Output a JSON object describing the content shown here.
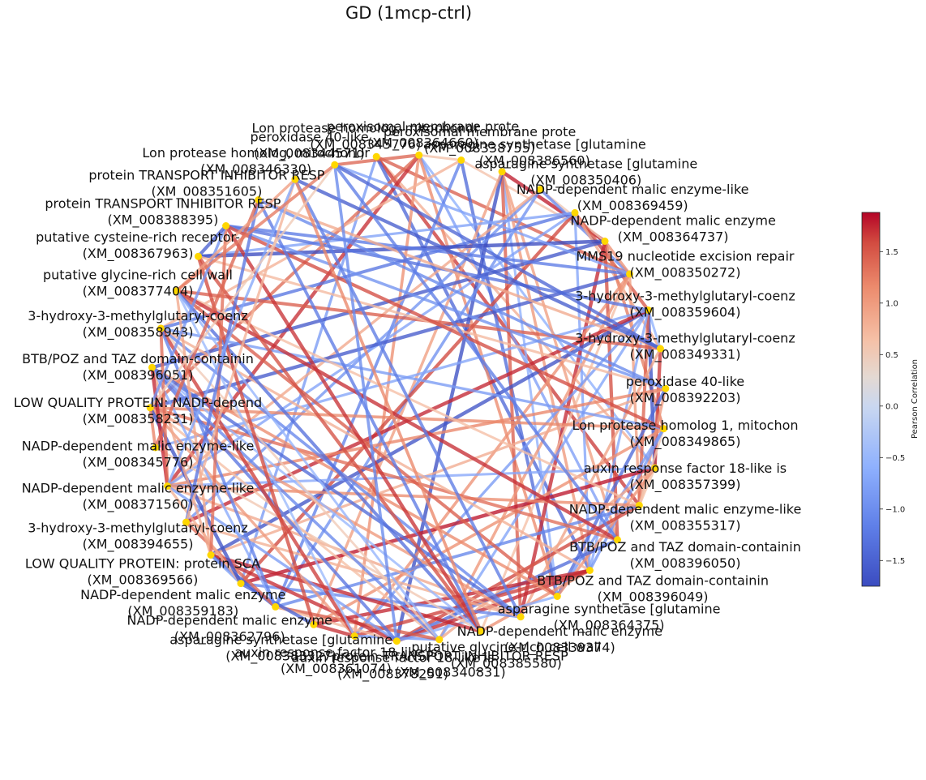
{
  "title": "GD (1mcp-ctrl)",
  "colorbar": {
    "label": "Pearson Correlation",
    "min": -1.75,
    "max": 1.88,
    "ticks": [
      -1.5,
      -1.0,
      -0.5,
      0.0,
      0.5,
      1.0,
      1.5
    ],
    "tick_labels": [
      "−1.5",
      "−1.0",
      "−0.5",
      "0.0",
      "0.5",
      "1.0",
      "1.5"
    ],
    "colormap": "coolwarm",
    "colors": [
      "#3b4cc0",
      "#7396f5",
      "#b0cbfc",
      "#dddcdc",
      "#f7b89c",
      "#ee8468",
      "#b40426"
    ]
  },
  "node_color": "#ffd700",
  "nodes": [
    {
      "id": "XM_008345776",
      "line1": "Lon protease homolog, mitochondr",
      "line2": "(XM_008345776)"
    },
    {
      "id": "XM_008364660",
      "line1": "peroxisomal membrane prote",
      "line2": "(XM_008364660)"
    },
    {
      "id": "XM_008338755",
      "line1": "peroxisomal membrane prote",
      "line2": "(XM_008338755)"
    },
    {
      "id": "XM_008386560",
      "line1": "asparagine synthetase [glutamine",
      "line2": "(XM_008386560)"
    },
    {
      "id": "XM_008350406",
      "line1": "asparagine synthetase [glutamine",
      "line2": "(XM_008350406)"
    },
    {
      "id": "XM_008369459",
      "line1": "NADP-dependent malic enzyme-like",
      "line2": "(XM_008369459)"
    },
    {
      "id": "XM_008364737",
      "line1": "NADP-dependent malic enzyme",
      "line2": "(XM_008364737)"
    },
    {
      "id": "XM_008350272",
      "line1": "MMS19 nucleotide excision repair",
      "line2": "(XM_008350272)"
    },
    {
      "id": "XM_008359604",
      "line1": "3-hydroxy-3-methylglutaryl-coenz",
      "line2": "(XM_008359604)"
    },
    {
      "id": "XM_008349331",
      "line1": "3-hydroxy-3-methylglutaryl-coenz",
      "line2": "(XM_008349331)"
    },
    {
      "id": "XM_008392203",
      "line1": "peroxidase 40-like",
      "line2": "(XM_008392203)"
    },
    {
      "id": "XM_008349865",
      "line1": "Lon protease homolog 1, mitochon",
      "line2": "(XM_008349865)"
    },
    {
      "id": "XM_008357399",
      "line1": "auxin response factor 18-like is",
      "line2": "(XM_008357399)"
    },
    {
      "id": "XM_008355317",
      "line1": "NADP-dependent malic enzyme-like",
      "line2": "(XM_008355317)"
    },
    {
      "id": "XM_008396050",
      "line1": "BTB/POZ and TAZ domain-containin",
      "line2": "(XM_008396050)"
    },
    {
      "id": "XM_008396049",
      "line1": "BTB/POZ and TAZ domain-containin",
      "line2": "(XM_008396049)"
    },
    {
      "id": "XM_008364375",
      "line1": "asparagine synthetase [glutamine",
      "line2": "(XM_008364375)"
    },
    {
      "id": "XM_008339374",
      "line1": "NADP-dependent malic enzyme",
      "line2": "(XM_008339374)"
    },
    {
      "id": "XM_008385580",
      "line1": "putative glycine-rich cell wall",
      "line2": "(XM_008385580)"
    },
    {
      "id": "XM_008340831",
      "line1": "protein TRANSPORT INHIBITOR RESP",
      "line2": "(XM_008340831)"
    },
    {
      "id": "XM_008378251",
      "line1": "auxin response factor 18-like is",
      "line2": "(XM_008378251)"
    },
    {
      "id": "XM_008361074",
      "line1": "auxin response factor 18-like is",
      "line2": "(XM_008361074)"
    },
    {
      "id": "XM_008383327",
      "line1": "asparagine synthetase [glutamine",
      "line2": "(XM_008383327)"
    },
    {
      "id": "XM_008362796",
      "line1": "NADP-dependent malic enzyme",
      "line2": "(XM_008362796)"
    },
    {
      "id": "XM_008359183",
      "line1": "NADP-dependent malic enzyme",
      "line2": "(XM_008359183)"
    },
    {
      "id": "XM_008369566",
      "line1": "LOW QUALITY PROTEIN: protein SCA",
      "line2": "(XM_008369566)"
    },
    {
      "id": "XM_008394655",
      "line1": "3-hydroxy-3-methylglutaryl-coenz",
      "line2": "(XM_008394655)"
    },
    {
      "id": "XM_008371560",
      "line1": "NADP-dependent malic enzyme-like",
      "line2": "(XM_008371560)"
    },
    {
      "id": "XM_008345776b",
      "line1": "NADP-dependent malic enzyme-like",
      "line2": "(XM_008345776)"
    },
    {
      "id": "XM_008358231",
      "line1": "LOW QUALITY PROTEIN: NADP-depend",
      "line2": "(XM_008358231)"
    },
    {
      "id": "XM_008396051",
      "line1": "BTB/POZ and TAZ domain-containin",
      "line2": "(XM_008396051)"
    },
    {
      "id": "XM_008358943",
      "line1": "3-hydroxy-3-methylglutaryl-coenz",
      "line2": "(XM_008358943)"
    },
    {
      "id": "XM_008377404",
      "line1": "putative glycine-rich cell wall",
      "line2": "(XM_008377404)"
    },
    {
      "id": "XM_008367963",
      "line1": "putative cysteine-rich receptor-",
      "line2": "(XM_008367963)"
    },
    {
      "id": "XM_008388395",
      "line1": "protein TRANSPORT INHIBITOR RESP",
      "line2": "(XM_008388395)"
    },
    {
      "id": "XM_008351605",
      "line1": "protein TRANSPORT INHIBITOR RESP",
      "line2": "(XM_008351605)"
    },
    {
      "id": "XM_008346330",
      "line1": "Lon protease homolog, mitochondr",
      "line2": "(XM_008346330)"
    },
    {
      "id": "XM_008344571",
      "line1": "peroxidase 40-like",
      "line2": "(XM_008344571)"
    }
  ]
}
